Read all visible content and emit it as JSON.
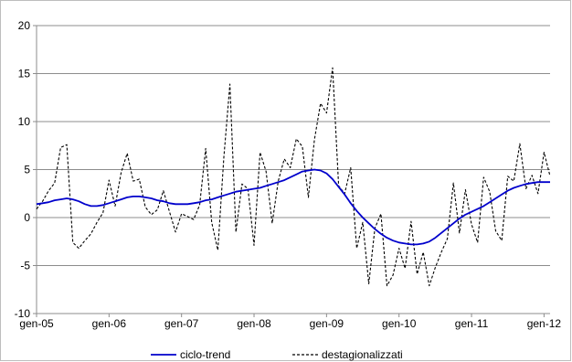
{
  "chart_data": {
    "type": "line",
    "title": "",
    "xlabel": "",
    "ylabel": "",
    "ylim": [
      -10,
      20
    ],
    "yticks": [
      "-10",
      "-5",
      "0",
      "5",
      "10",
      "15",
      "20"
    ],
    "xticks": [
      "gen-05",
      "gen-06",
      "gen-07",
      "gen-08",
      "gen-09",
      "gen-10",
      "gen-11",
      "gen-12"
    ],
    "xlim": [
      0,
      85
    ],
    "grid": "horizontal",
    "legend_position": "bottom",
    "x": [
      0,
      1,
      2,
      3,
      4,
      5,
      6,
      7,
      8,
      9,
      10,
      11,
      12,
      13,
      14,
      15,
      16,
      17,
      18,
      19,
      20,
      21,
      22,
      23,
      24,
      25,
      26,
      27,
      28,
      29,
      30,
      31,
      32,
      33,
      34,
      35,
      36,
      37,
      38,
      39,
      40,
      41,
      42,
      43,
      44,
      45,
      46,
      47,
      48,
      49,
      50,
      51,
      52,
      53,
      54,
      55,
      56,
      57,
      58,
      59,
      60,
      61,
      62,
      63,
      64,
      65,
      66,
      67,
      68,
      69,
      70,
      71,
      72,
      73,
      74,
      75,
      76,
      77,
      78,
      79,
      80,
      81,
      82,
      83,
      84,
      85
    ],
    "series": [
      {
        "name": "ciclo-trend",
        "color": "#0000cc",
        "style": "solid",
        "values": [
          1.4,
          1.5,
          1.6,
          1.8,
          1.9,
          2.0,
          1.9,
          1.7,
          1.4,
          1.2,
          1.2,
          1.3,
          1.5,
          1.7,
          1.9,
          2.1,
          2.2,
          2.2,
          2.1,
          2.0,
          1.8,
          1.7,
          1.5,
          1.4,
          1.4,
          1.4,
          1.5,
          1.6,
          1.8,
          1.9,
          2.1,
          2.3,
          2.5,
          2.7,
          2.8,
          2.9,
          3.0,
          3.1,
          3.3,
          3.5,
          3.7,
          3.9,
          4.2,
          4.5,
          4.8,
          4.9,
          5.0,
          4.9,
          4.6,
          4.0,
          3.2,
          2.4,
          1.5,
          0.7,
          0.0,
          -0.6,
          -1.2,
          -1.7,
          -2.1,
          -2.4,
          -2.6,
          -2.7,
          -2.8,
          -2.8,
          -2.7,
          -2.5,
          -2.1,
          -1.6,
          -1.1,
          -0.6,
          -0.1,
          0.3,
          0.6,
          0.9,
          1.2,
          1.6,
          2.0,
          2.4,
          2.8,
          3.1,
          3.3,
          3.5,
          3.6,
          3.7,
          3.7,
          3.7
        ]
      },
      {
        "name": "destagionalizzati",
        "color": "#000000",
        "style": "dashed",
        "values": [
          0.9,
          1.7,
          2.8,
          3.6,
          7.3,
          7.6,
          -2.6,
          -3.2,
          -2.4,
          -1.7,
          -0.5,
          0.5,
          3.9,
          1.2,
          4.7,
          6.7,
          3.8,
          4.0,
          1.1,
          0.3,
          0.8,
          2.8,
          0.6,
          -1.5,
          0.4,
          0.1,
          -0.2,
          1.3,
          7.2,
          -0.5,
          -3.4,
          6.3,
          13.9,
          -1.5,
          3.5,
          3.0,
          -2.9,
          6.8,
          4.8,
          -0.6,
          3.8,
          6.1,
          5.2,
          8.2,
          7.4,
          2.1,
          8.1,
          11.9,
          10.9,
          15.6,
          3.3,
          2.5,
          5.2,
          -3.2,
          -0.5,
          -6.9,
          -1.1,
          0.4,
          -7.1,
          -6.0,
          -3.2,
          -5.3,
          -0.4,
          -5.9,
          -3.6,
          -7.1,
          -5.2,
          -3.6,
          -2.2,
          3.6,
          -1.6,
          2.9,
          -0.7,
          -2.6,
          4.2,
          2.7,
          -1.4,
          -2.4,
          4.3,
          3.8,
          7.7,
          3.0,
          4.4,
          2.5,
          6.8,
          4.3
        ]
      }
    ]
  }
}
